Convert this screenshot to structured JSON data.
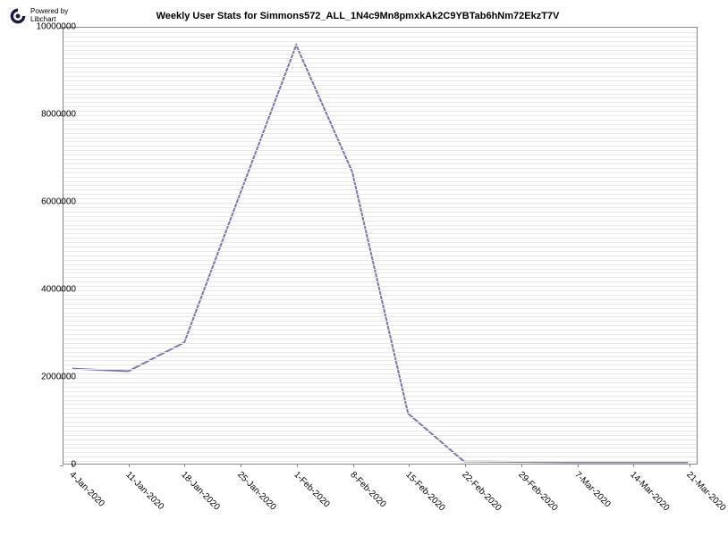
{
  "branding": {
    "line1": "Powered by",
    "line2": "Libchart",
    "icon_color": "#1a1a40"
  },
  "chart": {
    "type": "line",
    "title": "Weekly User Stats for Simmons572_ALL_1N4c9Mn8pmxkAk2C9YBTab6hNm72EkzT7V",
    "title_fontsize": 11,
    "background_color": "#ffffff",
    "plot_background": "#fefefe",
    "grid_color": "#e8e8e8",
    "border_color": "#888888",
    "line_color": "#7878a8",
    "line_width": 2,
    "x_labels": [
      "4-Jan-2020",
      "11-Jan-2020",
      "18-Jan-2020",
      "25-Jan-2020",
      "1-Feb-2020",
      "8-Feb-2020",
      "15-Feb-2020",
      "22-Feb-2020",
      "29-Feb-2020",
      "7-Mar-2020",
      "14-Mar-2020",
      "21-Mar-2020"
    ],
    "y_labels": [
      "0",
      "2000000",
      "4000000",
      "6000000",
      "8000000",
      "10000000"
    ],
    "ylim": [
      0,
      10000000
    ],
    "ytick_step": 2000000,
    "label_fontsize": 10,
    "values": [
      2180000,
      2120000,
      2780000,
      6200000,
      9600000,
      6700000,
      1150000,
      50000,
      40000,
      30000,
      30000,
      30000
    ],
    "grid_lines_count": 100
  }
}
